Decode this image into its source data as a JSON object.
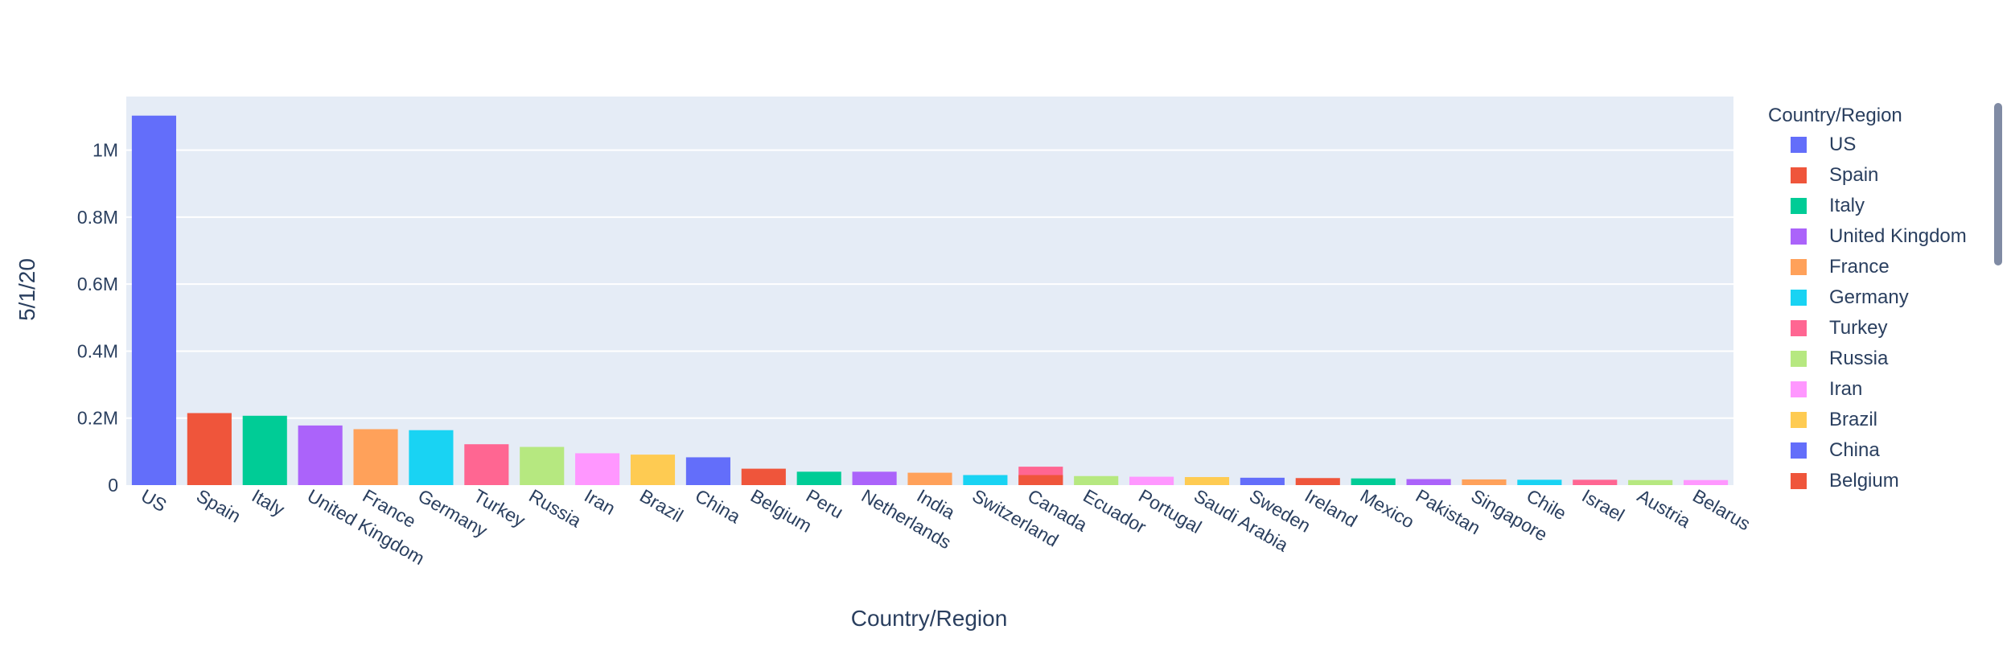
{
  "chart_data": {
    "type": "bar",
    "xlabel": "Country/Region",
    "ylabel": "5/1/20",
    "legend_title": "Country/Region",
    "legend_placement": "right",
    "grid": true,
    "plot_background": "#E5ECF6",
    "ylim": [
      0,
      1160000
    ],
    "y_ticks": [
      {
        "value": 0,
        "label": "0"
      },
      {
        "value": 200000,
        "label": "0.2M"
      },
      {
        "value": 400000,
        "label": "0.4M"
      },
      {
        "value": 600000,
        "label": "0.6M"
      },
      {
        "value": 800000,
        "label": "0.8M"
      },
      {
        "value": 1000000,
        "label": "1M"
      }
    ],
    "palette": [
      "#636EFA",
      "#EF553B",
      "#00CC96",
      "#AB63FA",
      "#FFA15A",
      "#19D3F3",
      "#FF6692",
      "#B6E880",
      "#FF97FF",
      "#FECB52"
    ],
    "categories": [
      "US",
      "Spain",
      "Italy",
      "United Kingdom",
      "France",
      "Germany",
      "Turkey",
      "Russia",
      "Iran",
      "Brazil",
      "China",
      "Belgium",
      "Peru",
      "Netherlands",
      "India",
      "Switzerland",
      "Canada",
      "Ecuador",
      "Portugal",
      "Saudi Arabia",
      "Sweden",
      "Ireland",
      "Mexico",
      "Pakistan",
      "Singapore",
      "Chile",
      "Israel",
      "Austria",
      "Belarus"
    ],
    "values": [
      1103000,
      215000,
      207000,
      178000,
      167000,
      164000,
      122000,
      114000,
      95000,
      91000,
      83000,
      49000,
      40000,
      40000,
      37000,
      30000,
      55000,
      27000,
      25000,
      24000,
      22000,
      21000,
      20000,
      18000,
      17000,
      16000,
      16000,
      15000,
      15000
    ],
    "overlay_segments": [
      {
        "category": "Canada",
        "value": 30000,
        "color": "#EF553B"
      }
    ],
    "legend_visible_items": [
      "US",
      "Spain",
      "Italy",
      "United Kingdom",
      "France",
      "Germany",
      "Turkey",
      "Russia",
      "Iran",
      "Brazil",
      "China",
      "Belgium"
    ]
  }
}
